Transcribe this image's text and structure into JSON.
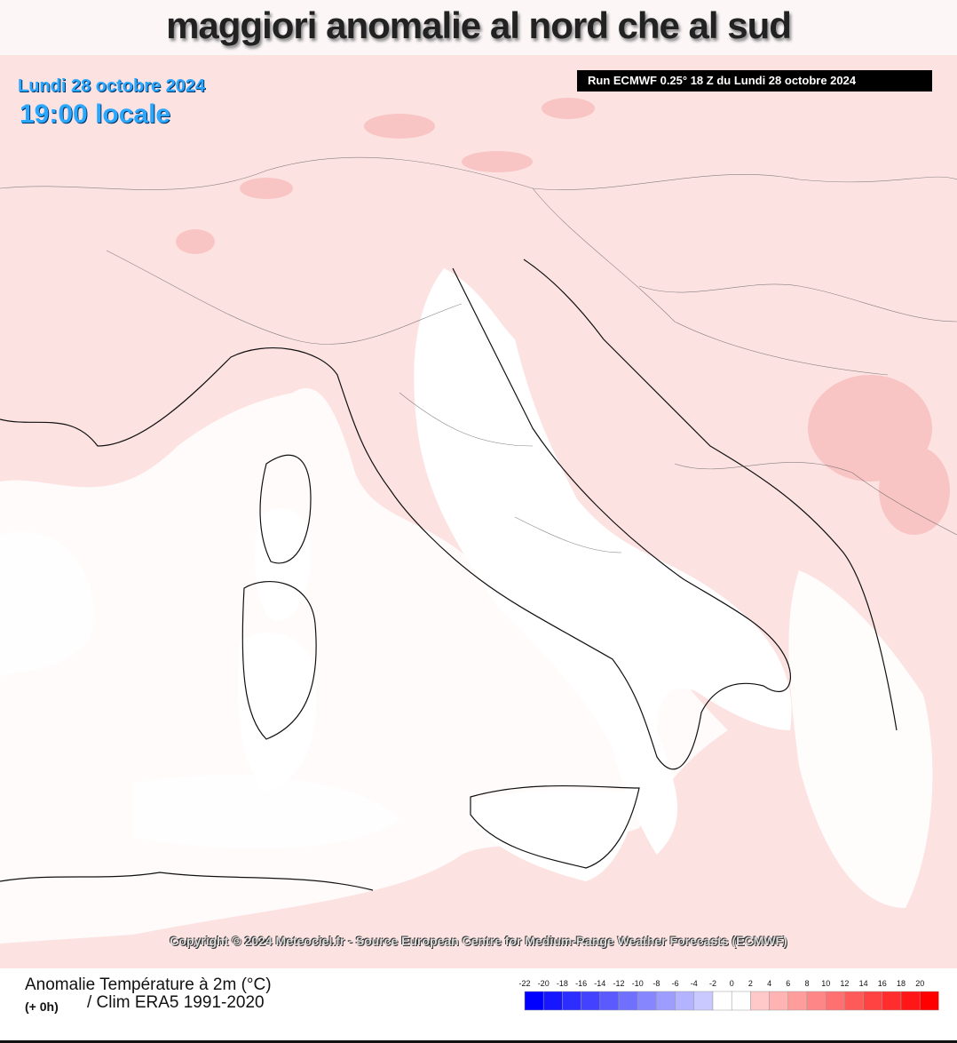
{
  "header": {
    "title": "maggiori anomalie al nord che al sud"
  },
  "map": {
    "date": "Lundi 28 octobre 2024",
    "time": "19:00 locale",
    "run": "Run ECMWF 0.25° 18 Z du Lundi 28 octobre 2024",
    "copyright": "Copyright © 2024 Meteociel.fr - Source European Centre for Medium-Range Weather Forecasts (ECMWF)"
  },
  "legend": {
    "title": "Anomalie Température à 2m (°C)",
    "step": "(+ 0h)",
    "clim": "/ Clim ERA5 1991-2020",
    "labels": [
      -22,
      -20,
      -18,
      -16,
      -14,
      -12,
      -10,
      -8,
      -6,
      -4,
      -2,
      0,
      2,
      4,
      6,
      8,
      10,
      12,
      14,
      16,
      18,
      20
    ]
  }
}
